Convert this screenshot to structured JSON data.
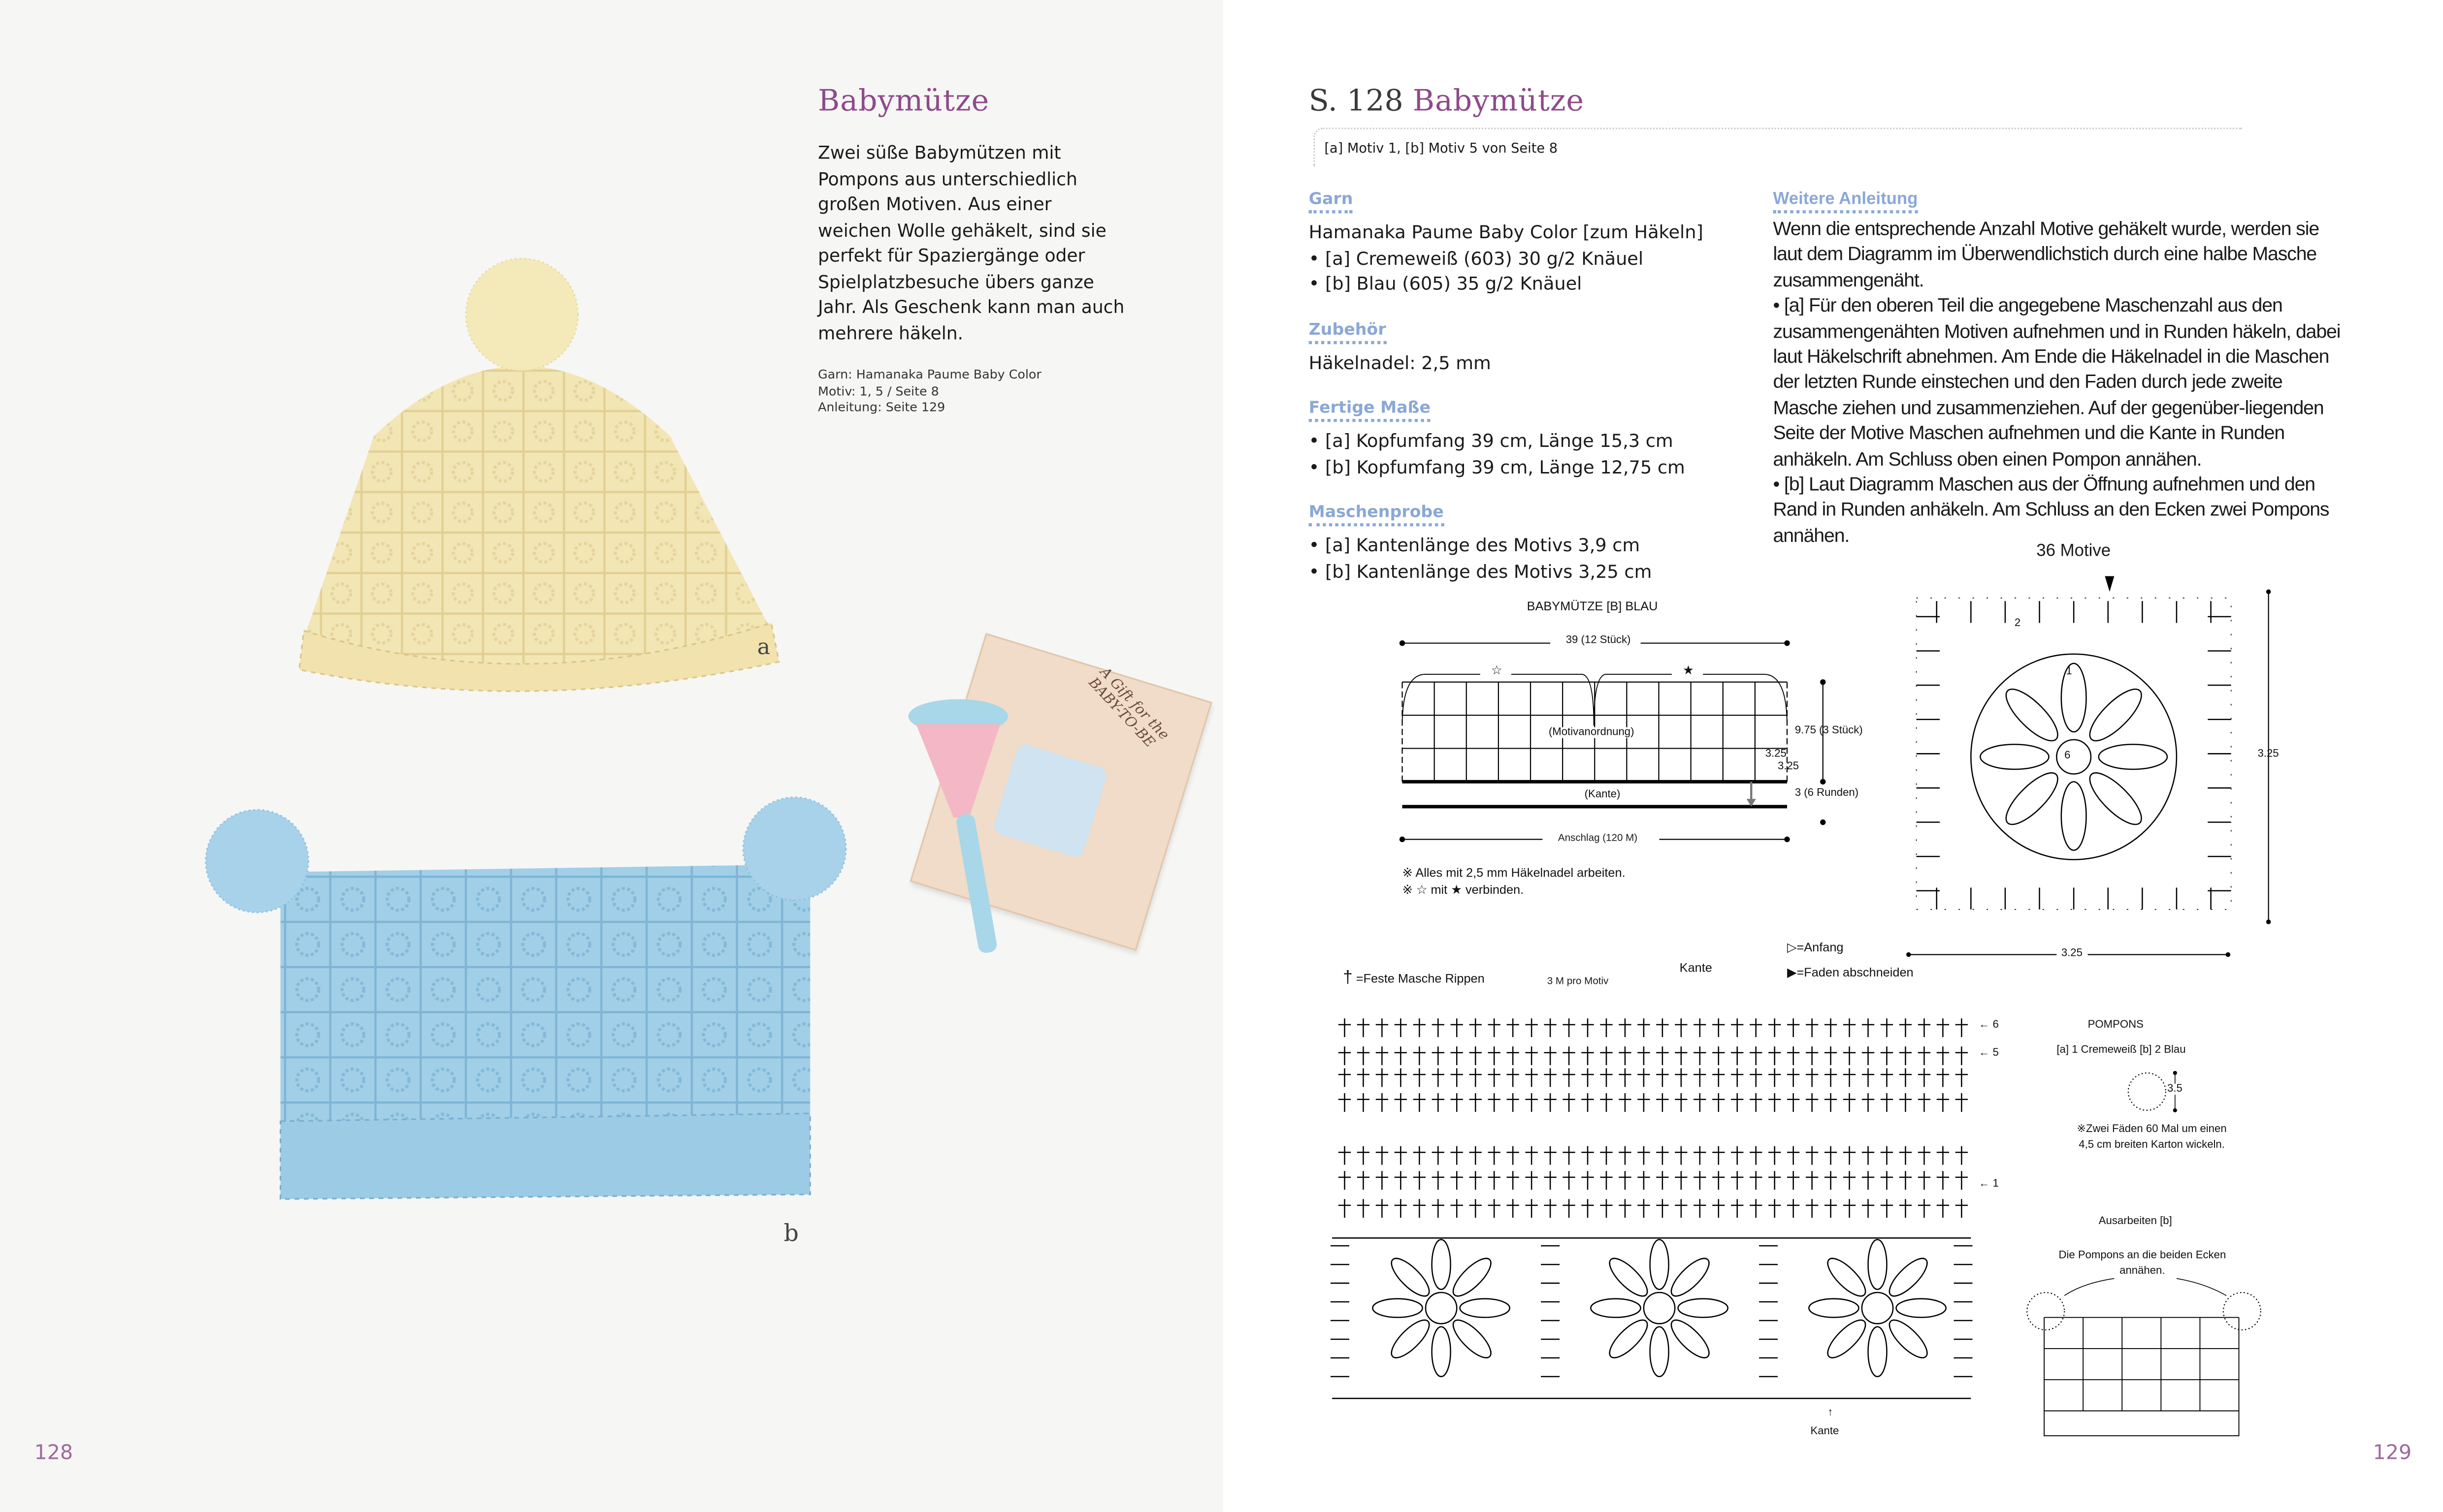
{
  "left_page": {
    "title": "Babymütze",
    "description": "Zwei süße Babymützen mit Pompons aus unterschiedlich großen Motiven. Aus einer weichen Wolle gehäkelt, sind sie perfekt für Spaziergänge oder Spielplatzbesuche übers ganze Jahr. Als Geschenk kann man auch mehrere häkeln.",
    "info": [
      "Garn: Hamanaka Paume Baby Color",
      "Motiv: 1, 5 / Seite 8",
      "Anleitung: Seite 129"
    ],
    "photo_labels": {
      "a": "a",
      "b": "b"
    },
    "card_text": "A Gift for the BABY-TO-BE",
    "page_number": "128"
  },
  "right_page": {
    "title_prefix": "S. 128",
    "title": "Babymütze",
    "note": "[a] Motiv 1, [b] Motiv 5 von Seite 8",
    "sections": [
      {
        "heading": "Garn",
        "lines": [
          "Hamanaka Paume Baby Color [zum Häkeln]",
          "• [a] Cremeweiß (603) 30 g/2 Knäuel",
          "• [b] Blau (605) 35 g/2 Knäuel"
        ]
      },
      {
        "heading": "Zubehör",
        "lines": [
          "Häkelnadel: 2,5 mm"
        ]
      },
      {
        "heading": "Fertige Maße",
        "lines": [
          "• [a] Kopfumfang 39 cm, Länge 15,3 cm",
          "• [b] Kopfumfang 39 cm, Länge 12,75 cm"
        ]
      },
      {
        "heading": "Maschenprobe",
        "lines": [
          "• [a] Kantenlänge des Motivs 3,9 cm",
          "• [b] Kantenlänge des Motivs 3,25 cm"
        ]
      }
    ],
    "instructions": {
      "heading": "Weitere Anleitung",
      "paragraphs": [
        "Wenn die entsprechende Anzahl Motive gehäkelt wurde, werden sie laut dem Diagramm im Überwendlichstich durch eine halbe Masche zusammengenäht.",
        "• [a] Für den oberen Teil die angegebene Maschenzahl aus den zusammengenähten Motiven aufnehmen und in Runden häkeln, dabei laut Häkelschrift abnehmen. Am Ende die Häkelnadel in die Maschen der letzten Runde einstechen und den Faden durch jede zweite Masche ziehen und zusammenziehen. Auf der gegenüber-liegenden Seite der Motive Maschen aufnehmen und die Kante in Runden anhäkeln. Am Schluss oben einen Pompon annähen.",
        "• [b] Laut Diagramm Maschen aus der Öffnung aufnehmen und den Rand in Runden anhäkeln. Am Schluss an den Ecken zwei Pompons annähen."
      ]
    },
    "layout_diagram": {
      "title": "BABYMÜTZE [B] BLAU",
      "width_label": "39 (12 Stück)",
      "star_open": "☆",
      "star_filled": "★",
      "center_label": "(Motivanordnung)",
      "height_label": "9.75 (3 Stück)",
      "motif_w": "3.25",
      "motif_h": "3.25",
      "edge_label": "(Kante)",
      "edge_height": "3 (6 Runden)",
      "bottom_label": "Anschlag (120 M)",
      "notes": [
        "※ Alles mit 2,5 mm Häkelnadel arbeiten.",
        "※ ☆ mit ★ verbinden."
      ]
    },
    "motif_diagram": {
      "title": "36 Motive",
      "side": "3.25",
      "bottom": "3.25",
      "center": "6",
      "rounds": [
        "1",
        "2"
      ]
    },
    "edge_chart": {
      "legend_stitch": "=Feste Masche Rippen",
      "per_motif": "3 M pro Motiv",
      "top_label": "Kante",
      "start": "=Anfang",
      "cut": "=Faden abschneiden",
      "rows": [
        "6",
        "5",
        "1"
      ],
      "bottom_label": "Kante"
    },
    "pompons": {
      "title": "POMPONS",
      "counts": "[a] 1 Cremeweiß [b] 2 Blau",
      "size": "3.5",
      "note": [
        "※Zwei Fäden 60 Mal um einen",
        "4,5 cm breiten Karton wickeln."
      ]
    },
    "finishing": {
      "title": "Ausarbeiten [b]",
      "note": [
        "Die Pompons an die beiden Ecken",
        "annähen."
      ]
    },
    "page_number": "129"
  },
  "colors": {
    "title_purple": "#8e4a8a",
    "heading_blue": "#8aa8d6",
    "cream_yarn": "#f3e6b5",
    "blue_yarn": "#9ccbe6"
  }
}
